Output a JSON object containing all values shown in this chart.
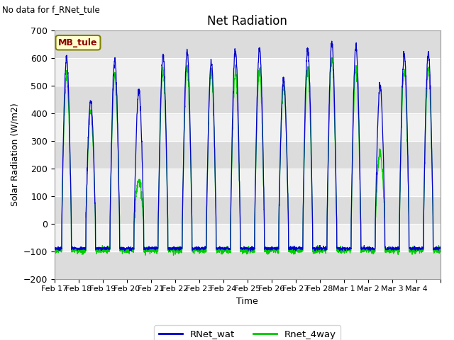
{
  "title": "Net Radiation",
  "xlabel": "Time",
  "ylabel": "Solar Radiation (W/m2)",
  "ylim": [
    -200,
    700
  ],
  "yticks": [
    -200,
    -100,
    0,
    100,
    200,
    300,
    400,
    500,
    600,
    700
  ],
  "no_data_text": "No data for f_RNet_tule",
  "annotation_text": "MB_tule",
  "legend_labels": [
    "RNet_wat",
    "Rnet_4way"
  ],
  "line_color_blue": "#0000CC",
  "line_color_green": "#00CC00",
  "bg_color": "#DCDCDC",
  "band_light": "#F0F0F0",
  "band_dark": "#DCDCDC",
  "xtick_labels": [
    "Feb 17",
    "Feb 18",
    "Feb 19",
    "Feb 20",
    "Feb 21",
    "Feb 22",
    "Feb 23",
    "Feb 24",
    "Feb 25",
    "Feb 26",
    "Feb 27",
    "Feb 28",
    "Mar 1",
    "Mar 2",
    "Mar 3",
    "Mar 4"
  ],
  "n_days": 16,
  "pts_per_day": 144,
  "blue_peaks": [
    600,
    445,
    595,
    485,
    610,
    625,
    585,
    635,
    635,
    525,
    635,
    660,
    645,
    500,
    615,
    615
  ],
  "green_peaks": [
    550,
    415,
    555,
    165,
    575,
    580,
    575,
    570,
    575,
    520,
    575,
    615,
    575,
    265,
    570,
    575
  ],
  "night_val_blue": -90,
  "night_val_green": -100
}
